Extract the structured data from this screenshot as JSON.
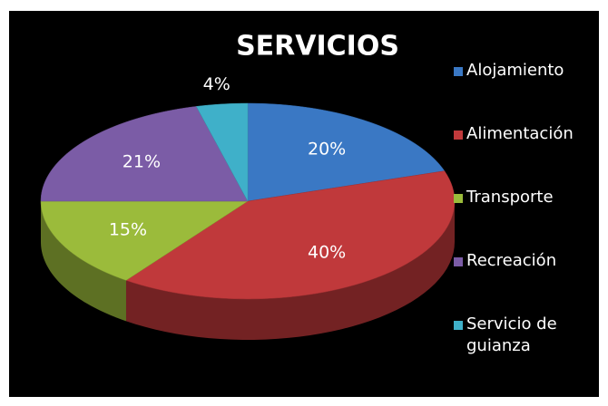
{
  "chart_data": {
    "type": "pie",
    "title": "SERVICIOS",
    "categories": [
      "Alojamiento",
      "Alimentación",
      "Transporte",
      "Recreación",
      "Servicio de guianza"
    ],
    "values": [
      20,
      40,
      15,
      21,
      4
    ],
    "value_labels": [
      "20%",
      "40%",
      "15%",
      "21%",
      "4%"
    ],
    "colors": [
      "#3a78c4",
      "#c0393b",
      "#9bbb3b",
      "#7b5ca6",
      "#3fb0c9"
    ],
    "legend": "right"
  }
}
